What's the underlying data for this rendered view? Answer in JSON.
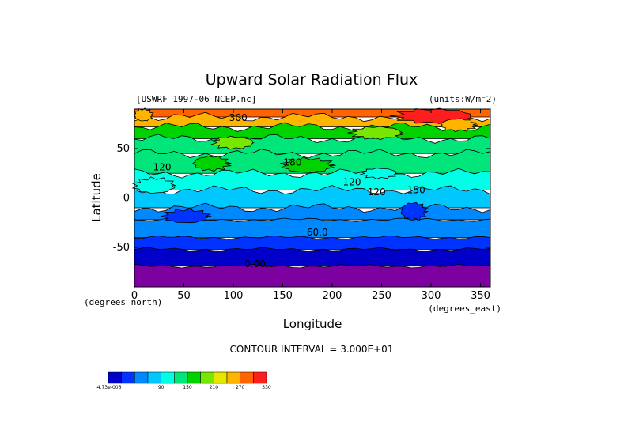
{
  "chart_data": {
    "type": "heatmap",
    "title": "Upward Solar Radiation Flux",
    "file_label": "[USWRF_1997-06_NCEP.nc]",
    "units_label": "(units:W/m^-2)",
    "xlabel": "Longitude",
    "ylabel": "Latitude",
    "x_unit_label": "(degrees_east)",
    "y_unit_label": "(degrees_north)",
    "xlim": [
      0,
      360
    ],
    "ylim": [
      -90,
      90
    ],
    "x_ticks": [
      0,
      50,
      100,
      150,
      200,
      250,
      300,
      350
    ],
    "y_ticks": [
      -50,
      0,
      50
    ],
    "contour_interval": "CONTOUR INTERVAL = 3.000E+01",
    "contour_labels": [
      {
        "text": "300",
        "x": 105,
        "y": 78
      },
      {
        "text": "120",
        "x": 28,
        "y": 28
      },
      {
        "text": "180",
        "x": 160,
        "y": 33
      },
      {
        "text": "120",
        "x": 220,
        "y": 13
      },
      {
        "text": "120",
        "x": 245,
        "y": 3
      },
      {
        "text": "150",
        "x": 285,
        "y": 5
      },
      {
        "text": "60.0",
        "x": 185,
        "y": -38
      },
      {
        "text": "0.00",
        "x": 122,
        "y": -70
      }
    ],
    "lat_bands": [
      {
        "lat_max": 90,
        "lat_min": 82,
        "value": 300
      },
      {
        "lat_max": 82,
        "lat_min": 72,
        "value": 270
      },
      {
        "lat_max": 72,
        "lat_min": 60,
        "value": 180
      },
      {
        "lat_max": 60,
        "lat_min": 45,
        "value": 150
      },
      {
        "lat_max": 45,
        "lat_min": 25,
        "value": 150
      },
      {
        "lat_max": 25,
        "lat_min": 8,
        "value": 120
      },
      {
        "lat_max": 8,
        "lat_min": -10,
        "value": 90
      },
      {
        "lat_max": -10,
        "lat_min": -22,
        "value": 60
      },
      {
        "lat_max": -22,
        "lat_min": -40,
        "value": 60
      },
      {
        "lat_max": -40,
        "lat_min": -52,
        "value": 30
      },
      {
        "lat_max": -52,
        "lat_min": -69,
        "value": 0
      },
      {
        "lat_max": -69,
        "lat_min": -90,
        "value": -30
      }
    ],
    "patches": [
      {
        "lon": [
          265,
          340
        ],
        "lat": [
          76,
          90
        ],
        "value": 330
      },
      {
        "lon": [
          0,
          18
        ],
        "lat": [
          78,
          90
        ],
        "value": 270
      },
      {
        "lon": [
          310,
          345
        ],
        "lat": [
          68,
          80
        ],
        "value": 270
      },
      {
        "lon": [
          80,
          120
        ],
        "lat": [
          50,
          62
        ],
        "value": 210
      },
      {
        "lon": [
          150,
          200
        ],
        "lat": [
          26,
          40
        ],
        "value": 180
      },
      {
        "lon": [
          60,
          95
        ],
        "lat": [
          28,
          42
        ],
        "value": 180
      },
      {
        "lon": [
          220,
          270
        ],
        "lat": [
          60,
          72
        ],
        "value": 210
      },
      {
        "lon": [
          30,
          75
        ],
        "lat": [
          -12,
          -25
        ],
        "value": 30
      },
      {
        "lon": [
          270,
          295
        ],
        "lat": [
          -5,
          -22
        ],
        "value": 30
      },
      {
        "lon": [
          230,
          265
        ],
        "lat": [
          20,
          30
        ],
        "value": 120
      },
      {
        "lon": [
          0,
          40
        ],
        "lat": [
          5,
          20
        ],
        "value": 120
      }
    ],
    "colorbar": {
      "colors": [
        "#0000c8",
        "#0033ff",
        "#0088ff",
        "#00c8ff",
        "#00ffe6",
        "#00e67a",
        "#00d200",
        "#77e600",
        "#e6e600",
        "#ffb400",
        "#ff6400",
        "#ff1e1e"
      ],
      "tick_labels": [
        "-4.73e-006",
        "90",
        "150",
        "210",
        "270",
        "330"
      ],
      "tick_index": [
        0,
        3,
        5,
        7,
        9,
        11
      ]
    },
    "value_color_map": {
      "-30": "#7d00a0",
      "0": "#0000c8",
      "30": "#0033ff",
      "60": "#0088ff",
      "90": "#00c8ff",
      "120": "#00ffe6",
      "150": "#00e67a",
      "180": "#00d200",
      "210": "#77e600",
      "240": "#e6e600",
      "270": "#ffb400",
      "300": "#ff6400",
      "330": "#ff1e1e"
    }
  }
}
